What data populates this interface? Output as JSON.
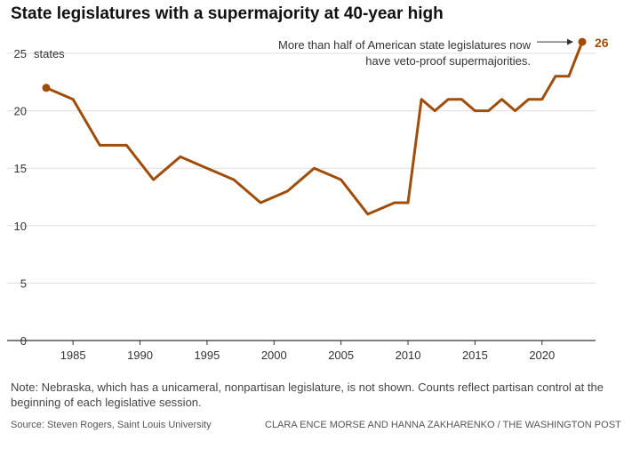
{
  "title": "State legislatures with a supermajority at 40-year high",
  "note": "Note: Nebraska, which has a unicameral, nonpartisan legislature, is not shown. Counts reflect partisan control at the beginning of each legislative session.",
  "source": "Source: Steven Rogers, Saint Louis University",
  "credit": "CLARA ENCE MORSE AND HANNA ZAKHARENKO / THE WASHINGTON POST",
  "colors": {
    "line": "#a14d0a",
    "grid": "#dddddd",
    "axis": "#333333",
    "text": "#333333"
  },
  "chart_data": {
    "type": "line",
    "title": "State legislatures with a supermajority at 40-year high",
    "ylabel": "states",
    "xlabel": "",
    "ylim": [
      0,
      25
    ],
    "xlim": [
      1983,
      2023
    ],
    "y_ticks": [
      0,
      5,
      10,
      15,
      20,
      25
    ],
    "x_ticks": [
      1985,
      1990,
      1995,
      2000,
      2005,
      2010,
      2015,
      2020
    ],
    "grid": true,
    "x": [
      1983,
      1985,
      1987,
      1989,
      1991,
      1993,
      1995,
      1997,
      1999,
      2001,
      2003,
      2005,
      2007,
      2009,
      2010,
      2011,
      2012,
      2013,
      2014,
      2015,
      2016,
      2017,
      2018,
      2019,
      2020,
      2021,
      2022,
      2023
    ],
    "values": [
      22,
      21,
      17,
      17,
      14,
      16,
      15,
      14,
      12,
      13,
      15,
      14,
      11,
      12,
      12,
      21,
      20,
      21,
      21,
      20,
      20,
      21,
      20,
      21,
      21,
      23,
      23,
      26
    ],
    "end_label": "26",
    "annotation": [
      "More than half of American state legislatures now",
      "have veto-proof supermajorities."
    ]
  }
}
